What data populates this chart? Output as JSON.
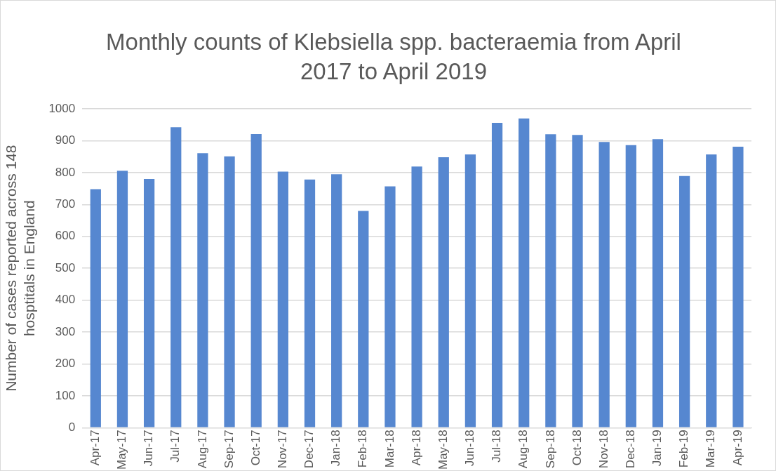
{
  "chart_data": {
    "type": "bar",
    "title": "Monthly counts of Klebsiella spp. bacteraemia from April 2017 to April 2019",
    "ylabel": "Number of cases reported across 148 hosptitals in England",
    "categories": [
      "Apr-17",
      "May-17",
      "Jun-17",
      "Jul-17",
      "Aug-17",
      "Sep-17",
      "Oct-17",
      "Nov-17",
      "Dec-17",
      "Jan-18",
      "Feb-18",
      "Mar-18",
      "Apr-18",
      "May-18",
      "Jun-18",
      "Jul-18",
      "Aug-18",
      "Sep-18",
      "Oct-18",
      "Nov-18",
      "Dec-18",
      "Jan-19",
      "Feb-19",
      "Mar-19",
      "Apr-19"
    ],
    "values": [
      748,
      806,
      780,
      942,
      861,
      851,
      921,
      803,
      778,
      795,
      680,
      757,
      819,
      848,
      857,
      956,
      970,
      920,
      918,
      896,
      886,
      905,
      789,
      857,
      881
    ],
    "color": "#5687d0",
    "ylim": [
      0,
      1000
    ],
    "yticks": [
      0,
      100,
      200,
      300,
      400,
      500,
      600,
      700,
      800,
      900,
      1000
    ],
    "grid": "y"
  }
}
